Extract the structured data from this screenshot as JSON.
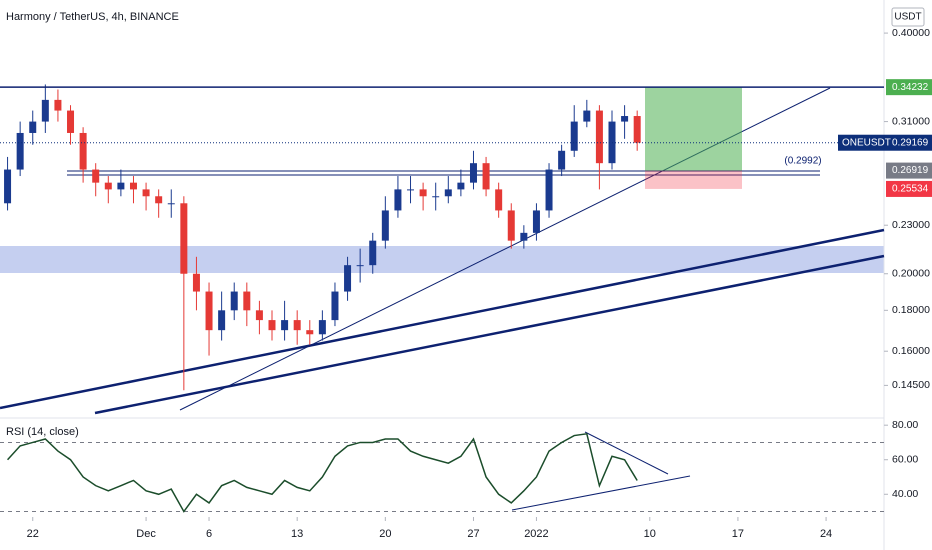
{
  "chart_data": [
    {
      "type": "candlestick",
      "title": "Harmony / TetherUS, 4h, BINANCE",
      "axis_unit": "USDT",
      "log_scale": true,
      "up_color": "#1a3a8f",
      "down_color": "#e53935",
      "x": [
        20,
        21,
        22,
        23,
        24,
        25,
        26,
        27,
        28,
        29,
        30,
        31,
        32,
        33,
        34,
        35,
        36,
        37,
        38,
        39,
        40,
        41,
        42,
        43,
        44,
        45,
        46,
        47,
        48,
        49,
        50,
        51,
        52,
        53,
        54,
        55,
        56,
        57,
        58,
        59,
        60,
        61,
        62,
        63,
        64,
        65,
        66,
        67,
        68,
        69,
        70
      ],
      "open": [
        0.245,
        0.27,
        0.3,
        0.31,
        0.33,
        0.32,
        0.3,
        0.27,
        0.26,
        0.255,
        0.26,
        0.255,
        0.25,
        0.245,
        0.245,
        0.2,
        0.19,
        0.17,
        0.18,
        0.19,
        0.18,
        0.175,
        0.17,
        0.175,
        0.17,
        0.168,
        0.175,
        0.19,
        0.205,
        0.205,
        0.22,
        0.24,
        0.255,
        0.255,
        0.25,
        0.25,
        0.255,
        0.26,
        0.275,
        0.255,
        0.24,
        0.22,
        0.225,
        0.24,
        0.27,
        0.285,
        0.31,
        0.32,
        0.275,
        0.31,
        0.315
      ],
      "high": [
        0.28,
        0.31,
        0.32,
        0.345,
        0.34,
        0.325,
        0.305,
        0.275,
        0.265,
        0.27,
        0.265,
        0.26,
        0.255,
        0.255,
        0.25,
        0.21,
        0.195,
        0.19,
        0.195,
        0.195,
        0.185,
        0.18,
        0.185,
        0.18,
        0.175,
        0.18,
        0.195,
        0.21,
        0.215,
        0.225,
        0.25,
        0.265,
        0.265,
        0.26,
        0.26,
        0.265,
        0.27,
        0.285,
        0.28,
        0.26,
        0.245,
        0.23,
        0.245,
        0.275,
        0.29,
        0.325,
        0.33,
        0.325,
        0.32,
        0.325,
        0.32
      ],
      "low": [
        0.24,
        0.265,
        0.29,
        0.3,
        0.31,
        0.29,
        0.26,
        0.25,
        0.245,
        0.25,
        0.245,
        0.24,
        0.235,
        0.235,
        0.143,
        0.18,
        0.158,
        0.165,
        0.175,
        0.172,
        0.168,
        0.165,
        0.165,
        0.163,
        0.163,
        0.165,
        0.172,
        0.185,
        0.195,
        0.2,
        0.215,
        0.235,
        0.245,
        0.24,
        0.24,
        0.245,
        0.25,
        0.255,
        0.25,
        0.235,
        0.215,
        0.215,
        0.22,
        0.235,
        0.265,
        0.28,
        0.305,
        0.255,
        0.27,
        0.295,
        0.285
      ],
      "close": [
        0.27,
        0.3,
        0.31,
        0.33,
        0.32,
        0.3,
        0.27,
        0.26,
        0.255,
        0.26,
        0.255,
        0.25,
        0.245,
        0.245,
        0.2,
        0.19,
        0.17,
        0.18,
        0.19,
        0.18,
        0.175,
        0.17,
        0.175,
        0.17,
        0.168,
        0.175,
        0.19,
        0.205,
        0.205,
        0.22,
        0.24,
        0.255,
        0.255,
        0.25,
        0.25,
        0.255,
        0.26,
        0.275,
        0.255,
        0.24,
        0.22,
        0.225,
        0.24,
        0.27,
        0.285,
        0.31,
        0.32,
        0.275,
        0.31,
        0.315,
        0.29169
      ],
      "xlim": [
        19.4,
        89.6
      ],
      "ylim": [
        0.132,
        0.44
      ],
      "yticks": [
        {
          "value": 0.4,
          "label": "0.40000"
        },
        {
          "value": 0.31,
          "label": "0.31000"
        },
        {
          "value": 0.23,
          "label": "0.23000"
        },
        {
          "value": 0.2,
          "label": "0.20000"
        },
        {
          "value": 0.18,
          "label": "0.18000"
        },
        {
          "value": 0.16,
          "label": "0.16000"
        },
        {
          "value": 0.145,
          "label": "0.14500"
        }
      ],
      "markers": [
        {
          "value": 0.34232,
          "color": "#4caf50"
        },
        {
          "name": "ONEUSDT",
          "value": 0.29169,
          "color": "#0d2f7a"
        },
        {
          "value": 0.26919,
          "color": "#787b86"
        },
        {
          "value": 0.25534,
          "color": "#f23645"
        }
      ],
      "annotation": "(0.2992)"
    },
    {
      "type": "line",
      "title": "RSI (14, close)",
      "color": "#1b4d2b",
      "x": [
        20,
        21,
        22,
        23,
        24,
        25,
        26,
        27,
        28,
        29,
        30,
        31,
        32,
        33,
        34,
        35,
        36,
        37,
        38,
        39,
        40,
        41,
        42,
        43,
        44,
        45,
        46,
        47,
        48,
        49,
        50,
        51,
        52,
        53,
        54,
        55,
        56,
        57,
        58,
        59,
        60,
        61,
        62,
        63,
        64,
        65,
        66,
        67,
        68,
        69,
        70
      ],
      "values": [
        60,
        68,
        70,
        72,
        65,
        60,
        50,
        45,
        42,
        45,
        48,
        42,
        40,
        43,
        30,
        40,
        35,
        45,
        48,
        44,
        42,
        40,
        48,
        44,
        42,
        50,
        62,
        68,
        70,
        70,
        72,
        72,
        65,
        62,
        60,
        58,
        62,
        72,
        50,
        40,
        35,
        42,
        50,
        65,
        70,
        74,
        75,
        45,
        62,
        60,
        48
      ],
      "xlim": [
        19.4,
        89.6
      ],
      "ylim": [
        28,
        83
      ],
      "levels": [
        70,
        30
      ],
      "yticks": [
        {
          "value": 80,
          "label": "80.00"
        },
        {
          "value": 60,
          "label": "60.00"
        },
        {
          "value": 40,
          "label": "40.00"
        }
      ],
      "xticks": [
        22,
        {
          "value": 31,
          "label": "Dec"
        },
        {
          "value": 36,
          "label": "6"
        },
        {
          "value": 43,
          "label": "13"
        },
        {
          "value": 50,
          "label": "20"
        },
        {
          "value": 57,
          "label": "27"
        },
        {
          "value": 62,
          "label": "2022"
        },
        {
          "value": 71,
          "label": "10"
        },
        {
          "value": 78,
          "label": "17"
        },
        {
          "value": 85,
          "label": "24"
        }
      ]
    }
  ]
}
